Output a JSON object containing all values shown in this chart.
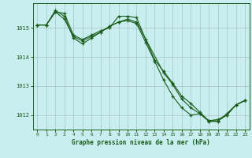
{
  "title": "Graphe pression niveau de la mer (hPa)",
  "bg_color": "#c8eef0",
  "grid_color": "#b0c8c8",
  "line_color": "#1a5c1a",
  "xlim": [
    -0.5,
    23.5
  ],
  "ylim": [
    1011.5,
    1015.85
  ],
  "yticks": [
    1012,
    1013,
    1014,
    1015
  ],
  "xticks": [
    0,
    1,
    2,
    3,
    4,
    5,
    6,
    7,
    8,
    9,
    10,
    11,
    12,
    13,
    14,
    15,
    16,
    17,
    18,
    19,
    20,
    21,
    22,
    23
  ],
  "series": [
    {
      "x": [
        0,
        1,
        2,
        3,
        4,
        5,
        6,
        7,
        8,
        9,
        10,
        11,
        12,
        13,
        14,
        15,
        16,
        17,
        18,
        19,
        20,
        21,
        22,
        23
      ],
      "y": [
        1015.1,
        1015.1,
        1015.55,
        1015.5,
        1014.75,
        1014.6,
        1014.75,
        1014.9,
        1015.0,
        1015.4,
        1015.4,
        1015.35,
        1014.6,
        1013.9,
        1013.5,
        1013.1,
        1012.65,
        1012.4,
        1012.1,
        1011.8,
        1011.8,
        1012.0,
        1012.35,
        1012.5
      ]
    },
    {
      "x": [
        0,
        1,
        2,
        3,
        4,
        5,
        6,
        7,
        8,
        9,
        10,
        11,
        12,
        13,
        14,
        15,
        16,
        17,
        18,
        19,
        20,
        21,
        22,
        23
      ],
      "y": [
        1015.1,
        1015.1,
        1015.55,
        1015.3,
        1014.7,
        1014.55,
        1014.7,
        1014.85,
        1015.05,
        1015.2,
        1015.25,
        1015.15,
        1014.5,
        1013.85,
        1013.2,
        1012.65,
        1012.25,
        1012.0,
        1012.05,
        1011.8,
        1011.85,
        1012.0,
        1012.35,
        1012.5
      ]
    },
    {
      "x": [
        0,
        1,
        2,
        3,
        4,
        5,
        6,
        7,
        8,
        9,
        10,
        11,
        14,
        15,
        16,
        17,
        18,
        19,
        20,
        21,
        22,
        23
      ],
      "y": [
        1015.1,
        1015.1,
        1015.6,
        1015.4,
        1014.65,
        1014.45,
        1014.65,
        1014.85,
        1015.05,
        1015.2,
        1015.3,
        1015.2,
        1013.45,
        1013.05,
        1012.55,
        1012.25,
        1012.05,
        1011.78,
        1011.78,
        1012.05,
        1012.35,
        1012.5
      ]
    }
  ]
}
